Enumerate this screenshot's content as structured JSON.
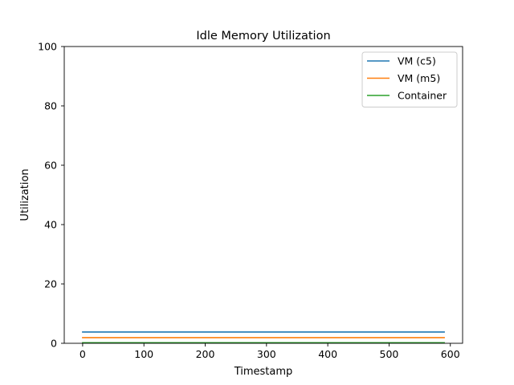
{
  "chart_data": {
    "type": "line",
    "title": "Idle Memory Utilization",
    "xlabel": "Timestamp",
    "ylabel": "Utilization",
    "xlim": [
      -30,
      620
    ],
    "ylim": [
      0,
      100
    ],
    "x_ticks": [
      0,
      100,
      200,
      300,
      400,
      500,
      600
    ],
    "y_ticks": [
      0,
      20,
      40,
      60,
      80,
      100
    ],
    "grid": false,
    "legend_position": "top-right",
    "x": [
      0,
      50,
      100,
      150,
      200,
      250,
      300,
      350,
      400,
      450,
      500,
      550,
      590
    ],
    "series": [
      {
        "name": "VM (c5)",
        "color": "#1f77b4",
        "values": [
          3.8,
          3.8,
          3.8,
          3.8,
          3.8,
          3.8,
          3.8,
          3.8,
          3.8,
          3.8,
          3.8,
          3.8,
          3.8
        ]
      },
      {
        "name": "VM (m5)",
        "color": "#ff7f0e",
        "values": [
          1.9,
          1.9,
          1.9,
          1.9,
          1.9,
          1.9,
          1.9,
          1.9,
          1.9,
          1.9,
          1.9,
          1.9,
          1.9
        ]
      },
      {
        "name": "Container",
        "color": "#2ca02c",
        "values": [
          0.2,
          0.2,
          0.2,
          0.2,
          0.2,
          0.2,
          0.2,
          0.2,
          0.2,
          0.2,
          0.2,
          0.2,
          0.2
        ]
      }
    ]
  }
}
